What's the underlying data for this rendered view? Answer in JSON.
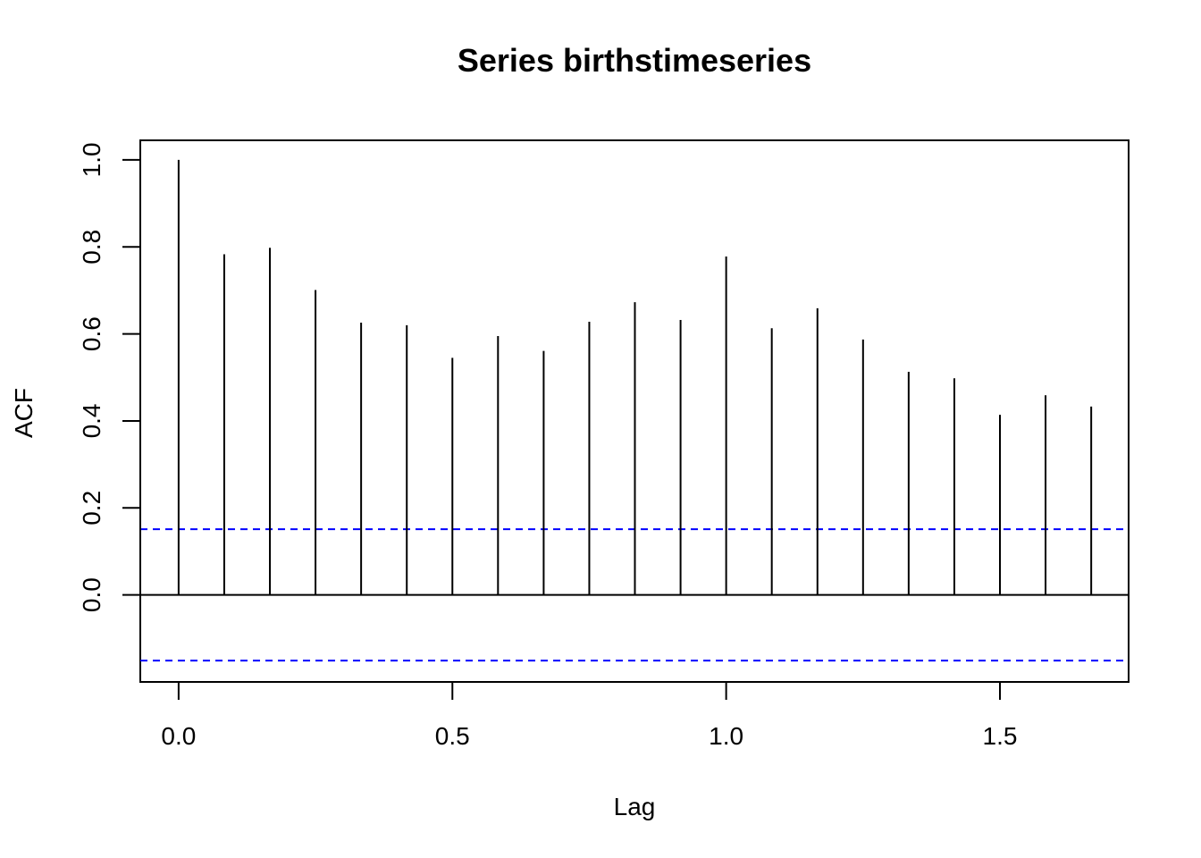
{
  "chart_data": {
    "type": "bar",
    "title": "Series  birthstimeseries",
    "xlabel": "Lag",
    "ylabel": "ACF",
    "xlim": [
      -0.07,
      1.735
    ],
    "ylim": [
      -0.2,
      1.045
    ],
    "x_ticks": [
      {
        "value": 0.0,
        "label": "0.0"
      },
      {
        "value": 0.5,
        "label": "0.5"
      },
      {
        "value": 1.0,
        "label": "1.0"
      },
      {
        "value": 1.5,
        "label": "1.5"
      }
    ],
    "y_ticks": [
      {
        "value": 0.0,
        "label": "0.0"
      },
      {
        "value": 0.2,
        "label": "0.2"
      },
      {
        "value": 0.4,
        "label": "0.4"
      },
      {
        "value": 0.6,
        "label": "0.6"
      },
      {
        "value": 0.8,
        "label": "0.8"
      },
      {
        "value": 1.0,
        "label": "1.0"
      }
    ],
    "lags": [
      0.0,
      0.0833,
      0.1667,
      0.25,
      0.3333,
      0.4167,
      0.5,
      0.5833,
      0.6667,
      0.75,
      0.8333,
      0.9167,
      1.0,
      1.0833,
      1.1667,
      1.25,
      1.3333,
      1.4167,
      1.5,
      1.5833,
      1.6667
    ],
    "acf": [
      1.0,
      0.783,
      0.798,
      0.701,
      0.626,
      0.62,
      0.545,
      0.595,
      0.561,
      0.628,
      0.673,
      0.632,
      0.778,
      0.613,
      0.659,
      0.587,
      0.513,
      0.498,
      0.414,
      0.459,
      0.433
    ],
    "confidence_bound": 0.151,
    "colors": {
      "spike": "#000000",
      "confidence_line": "#0000ff",
      "zero_line": "#000000"
    },
    "grid": false
  }
}
